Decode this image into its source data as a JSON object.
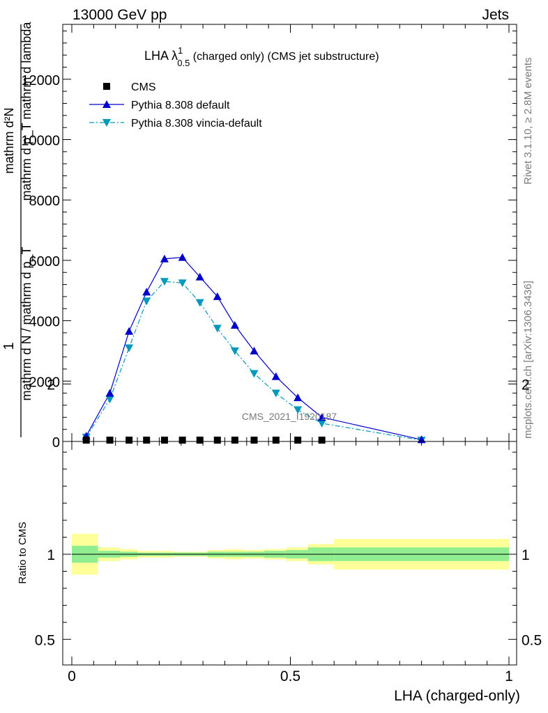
{
  "header": {
    "energy_label": "13000 GeV pp",
    "category_label": "Jets"
  },
  "side": {
    "rivet_label": "Rivet 3.1.10, ≥ 2.8M events",
    "mcplots_label": "mcplots.cern.ch [arXiv:1306.3436]"
  },
  "colors": {
    "data": "#000000",
    "pythia_default": "#0000cc",
    "vincia": "#0099bb",
    "band_inner": "#90ee90",
    "band_outer": "#ffff99"
  },
  "chart_data": [
    {
      "type": "line",
      "title_main": "LHA λ",
      "title_sup": "1",
      "title_sub": "0.5",
      "title_rest": " (charged only) (CMS jet substructure)",
      "ylabel_num": "1",
      "ylabel_den": "mathrm d N / mathrm d p_T",
      "ylabel_frac_num": "mathrm d²N",
      "ylabel_frac_den": "mathrm d p_T mathrm d lambda",
      "watermark": "CMS_2021_I1920187",
      "xlim": [
        0,
        1
      ],
      "ylim": [
        0,
        14000
      ],
      "y_ticks": [
        0,
        2000,
        4000,
        6000,
        8000,
        10000,
        12000
      ],
      "y_tick_labels": [
        "0",
        "2000",
        "4000",
        "6000",
        "8000",
        "10000",
        "12000"
      ],
      "legend": [
        "CMS",
        "Pythia 8.308 default",
        "Pythia 8.308 vincia-default"
      ],
      "series": [
        {
          "name": "CMS",
          "x": [
            0.033,
            0.087,
            0.131,
            0.171,
            0.212,
            0.253,
            0.293,
            0.333,
            0.373,
            0.417,
            0.467,
            0.517,
            0.572
          ],
          "y": [
            20,
            20,
            20,
            20,
            20,
            20,
            20,
            20,
            20,
            20,
            20,
            20,
            20
          ]
        },
        {
          "name": "Pythia 8.308 default",
          "x": [
            0.033,
            0.087,
            0.131,
            0.171,
            0.212,
            0.253,
            0.293,
            0.333,
            0.373,
            0.417,
            0.467,
            0.517,
            0.572,
            0.8
          ],
          "y": [
            180,
            1600,
            3650,
            4950,
            6050,
            6100,
            5450,
            4800,
            3850,
            3000,
            2150,
            1450,
            800,
            60
          ]
        },
        {
          "name": "Pythia 8.308 vincia-default",
          "x": [
            0.033,
            0.087,
            0.131,
            0.171,
            0.212,
            0.253,
            0.293,
            0.333,
            0.373,
            0.417,
            0.467,
            0.517,
            0.572,
            0.8
          ],
          "y": [
            140,
            1400,
            3100,
            4650,
            5300,
            5250,
            4600,
            3750,
            3000,
            2250,
            1600,
            1050,
            600,
            40
          ]
        }
      ]
    },
    {
      "type": "area",
      "ylabel": "Ratio to CMS",
      "xlabel": "LHA (charged-only)",
      "xlim": [
        0,
        1
      ],
      "ylim": [
        0.35,
        2.25
      ],
      "x_ticks": [
        0,
        0.5,
        1
      ],
      "x_tick_labels": [
        "0",
        "0.5",
        "1"
      ],
      "y_ticks": [
        0.5,
        1,
        2
      ],
      "y_tick_labels": [
        "0.5",
        "1",
        "2"
      ],
      "bands": {
        "bin_edges": [
          0,
          0.06,
          0.11,
          0.15,
          0.19,
          0.23,
          0.27,
          0.31,
          0.35,
          0.39,
          0.44,
          0.49,
          0.54,
          0.6,
          1.0
        ],
        "inner_lo": [
          0.95,
          0.98,
          0.985,
          0.99,
          0.99,
          0.99,
          0.99,
          0.985,
          0.985,
          0.985,
          0.98,
          0.975,
          0.96,
          0.96
        ],
        "inner_hi": [
          1.05,
          1.02,
          1.015,
          1.01,
          1.01,
          1.01,
          1.01,
          1.015,
          1.015,
          1.015,
          1.02,
          1.025,
          1.04,
          1.04
        ],
        "outer_lo": [
          0.88,
          0.96,
          0.97,
          0.98,
          0.98,
          0.985,
          0.985,
          0.975,
          0.97,
          0.975,
          0.97,
          0.96,
          0.94,
          0.91
        ],
        "outer_hi": [
          1.12,
          1.04,
          1.03,
          1.02,
          1.02,
          1.015,
          1.015,
          1.025,
          1.03,
          1.025,
          1.03,
          1.04,
          1.06,
          1.09
        ]
      }
    }
  ]
}
